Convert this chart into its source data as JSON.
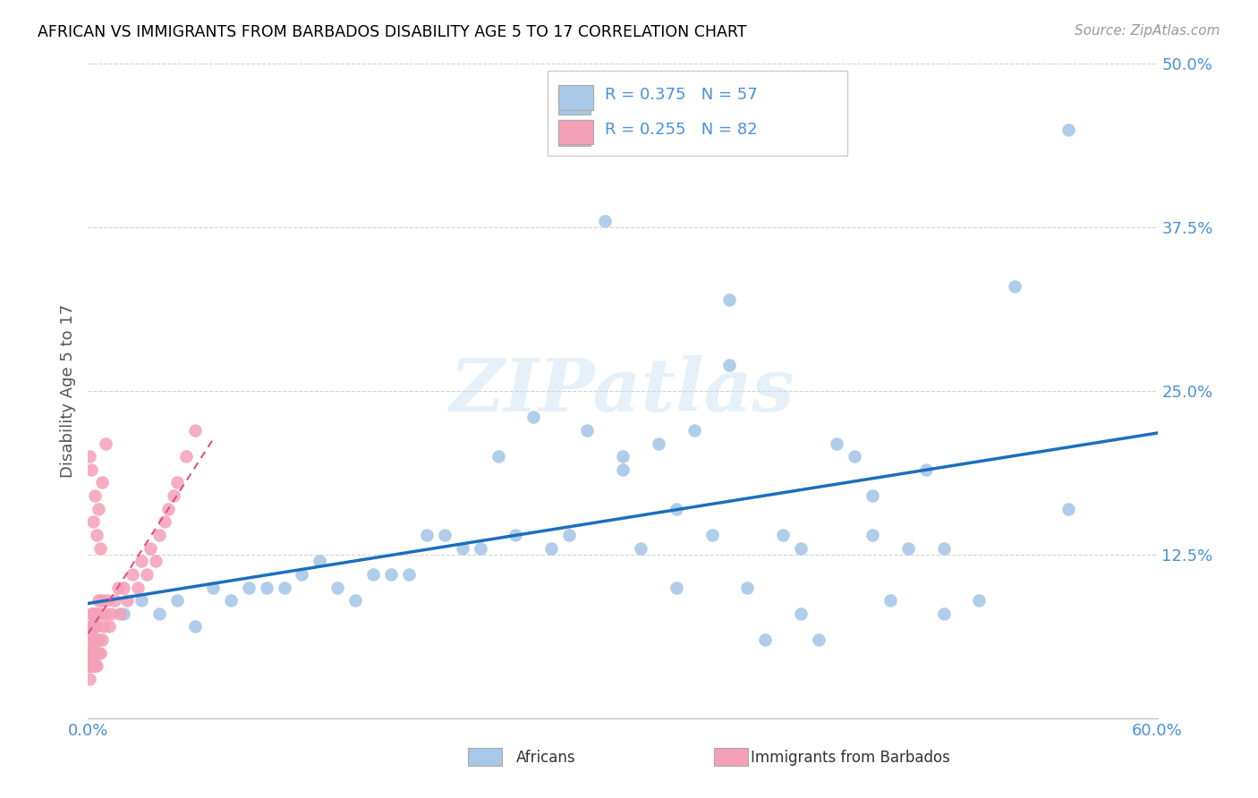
{
  "title": "AFRICAN VS IMMIGRANTS FROM BARBADOS DISABILITY AGE 5 TO 17 CORRELATION CHART",
  "source": "Source: ZipAtlas.com",
  "ylabel": "Disability Age 5 to 17",
  "xlim": [
    0.0,
    0.6
  ],
  "ylim": [
    0.0,
    0.5
  ],
  "xtick_positions": [
    0.0,
    0.1,
    0.2,
    0.3,
    0.4,
    0.5,
    0.6
  ],
  "xticklabels": [
    "0.0%",
    "",
    "",
    "",
    "",
    "",
    "60.0%"
  ],
  "ytick_positions": [
    0.0,
    0.125,
    0.25,
    0.375,
    0.5
  ],
  "yticklabels": [
    "",
    "12.5%",
    "25.0%",
    "37.5%",
    "50.0%"
  ],
  "african_color": "#a8c8e8",
  "barbados_color": "#f4a0b8",
  "african_edge_color": "#7aaed0",
  "barbados_edge_color": "#e888a8",
  "african_line_color": "#1a6fbd",
  "barbados_line_color": "#e05080",
  "african_r": 0.375,
  "african_n": 57,
  "barbados_r": 0.255,
  "barbados_n": 82,
  "background_color": "#ffffff",
  "grid_color": "#cccccc",
  "title_color": "#000000",
  "tick_color": "#4a90d9",
  "watermark": "ZIPatlas",
  "african_x": [
    0.02,
    0.03,
    0.04,
    0.05,
    0.06,
    0.07,
    0.08,
    0.09,
    0.1,
    0.11,
    0.12,
    0.13,
    0.14,
    0.15,
    0.16,
    0.17,
    0.18,
    0.19,
    0.2,
    0.21,
    0.22,
    0.23,
    0.24,
    0.25,
    0.26,
    0.27,
    0.28,
    0.29,
    0.3,
    0.31,
    0.32,
    0.33,
    0.34,
    0.35,
    0.36,
    0.37,
    0.38,
    0.39,
    0.4,
    0.41,
    0.42,
    0.43,
    0.44,
    0.45,
    0.46,
    0.47,
    0.48,
    0.5,
    0.52,
    0.55,
    0.3,
    0.33,
    0.36,
    0.4,
    0.44,
    0.48,
    0.55
  ],
  "african_y": [
    0.08,
    0.09,
    0.08,
    0.09,
    0.07,
    0.1,
    0.09,
    0.1,
    0.1,
    0.1,
    0.11,
    0.12,
    0.1,
    0.09,
    0.11,
    0.11,
    0.11,
    0.14,
    0.14,
    0.13,
    0.13,
    0.2,
    0.14,
    0.23,
    0.13,
    0.14,
    0.22,
    0.38,
    0.19,
    0.13,
    0.21,
    0.1,
    0.22,
    0.14,
    0.27,
    0.1,
    0.06,
    0.14,
    0.08,
    0.06,
    0.21,
    0.2,
    0.14,
    0.09,
    0.13,
    0.19,
    0.13,
    0.09,
    0.33,
    0.16,
    0.2,
    0.16,
    0.32,
    0.13,
    0.17,
    0.08,
    0.45
  ],
  "barbados_x": [
    0.001,
    0.001,
    0.001,
    0.001,
    0.001,
    0.001,
    0.001,
    0.001,
    0.001,
    0.001,
    0.002,
    0.002,
    0.002,
    0.002,
    0.002,
    0.002,
    0.002,
    0.002,
    0.002,
    0.002,
    0.003,
    0.003,
    0.003,
    0.003,
    0.003,
    0.003,
    0.003,
    0.003,
    0.003,
    0.003,
    0.004,
    0.004,
    0.004,
    0.004,
    0.004,
    0.004,
    0.004,
    0.004,
    0.005,
    0.005,
    0.005,
    0.005,
    0.005,
    0.006,
    0.006,
    0.006,
    0.007,
    0.007,
    0.008,
    0.008,
    0.009,
    0.01,
    0.011,
    0.012,
    0.013,
    0.015,
    0.017,
    0.018,
    0.02,
    0.022,
    0.025,
    0.028,
    0.03,
    0.033,
    0.035,
    0.038,
    0.04,
    0.043,
    0.045,
    0.048,
    0.05,
    0.055,
    0.06,
    0.001,
    0.002,
    0.003,
    0.004,
    0.005,
    0.006,
    0.007,
    0.008,
    0.01
  ],
  "barbados_y": [
    0.05,
    0.04,
    0.06,
    0.05,
    0.03,
    0.04,
    0.06,
    0.07,
    0.05,
    0.04,
    0.05,
    0.06,
    0.04,
    0.07,
    0.05,
    0.06,
    0.08,
    0.05,
    0.07,
    0.04,
    0.05,
    0.06,
    0.04,
    0.07,
    0.05,
    0.06,
    0.08,
    0.05,
    0.07,
    0.04,
    0.05,
    0.06,
    0.04,
    0.07,
    0.05,
    0.06,
    0.08,
    0.07,
    0.05,
    0.06,
    0.04,
    0.07,
    0.08,
    0.05,
    0.06,
    0.09,
    0.05,
    0.08,
    0.06,
    0.09,
    0.07,
    0.08,
    0.09,
    0.07,
    0.08,
    0.09,
    0.1,
    0.08,
    0.1,
    0.09,
    0.11,
    0.1,
    0.12,
    0.11,
    0.13,
    0.12,
    0.14,
    0.15,
    0.16,
    0.17,
    0.18,
    0.2,
    0.22,
    0.2,
    0.19,
    0.15,
    0.17,
    0.14,
    0.16,
    0.13,
    0.18,
    0.21
  ]
}
